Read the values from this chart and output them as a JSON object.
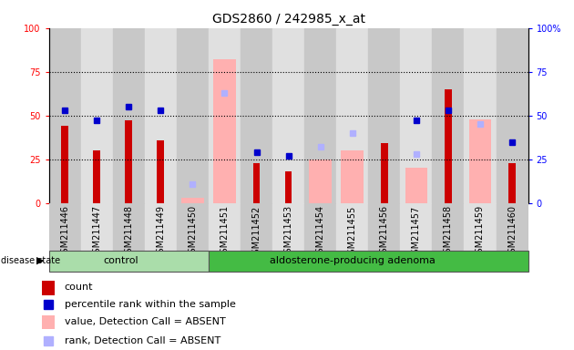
{
  "title": "GDS2860 / 242985_x_at",
  "samples": [
    "GSM211446",
    "GSM211447",
    "GSM211448",
    "GSM211449",
    "GSM211450",
    "GSM211451",
    "GSM211452",
    "GSM211453",
    "GSM211454",
    "GSM211455",
    "GSM211456",
    "GSM211457",
    "GSM211458",
    "GSM211459",
    "GSM211460"
  ],
  "count": [
    44,
    30,
    47,
    36,
    null,
    null,
    23,
    18,
    null,
    null,
    34,
    null,
    65,
    null,
    23
  ],
  "percentile_rank": [
    53,
    47,
    55,
    53,
    null,
    null,
    29,
    27,
    null,
    null,
    null,
    47,
    53,
    null,
    35
  ],
  "value_absent": [
    null,
    null,
    null,
    null,
    3,
    82,
    null,
    null,
    25,
    30,
    null,
    20,
    null,
    48,
    null
  ],
  "rank_absent": [
    null,
    null,
    null,
    null,
    11,
    63,
    null,
    null,
    32,
    40,
    null,
    28,
    null,
    45,
    null
  ],
  "ylim": [
    0,
    100
  ],
  "color_count": "#cc0000",
  "color_percentile": "#0000cc",
  "color_value_absent": "#ffb0b0",
  "color_rank_absent": "#b0b0ff",
  "color_bg_dark": "#c8c8c8",
  "color_bg_light": "#e0e0e0",
  "ctrl_count": 5,
  "ada_count": 10,
  "title_fontsize": 10,
  "tick_fontsize": 7,
  "legend_fontsize": 8
}
